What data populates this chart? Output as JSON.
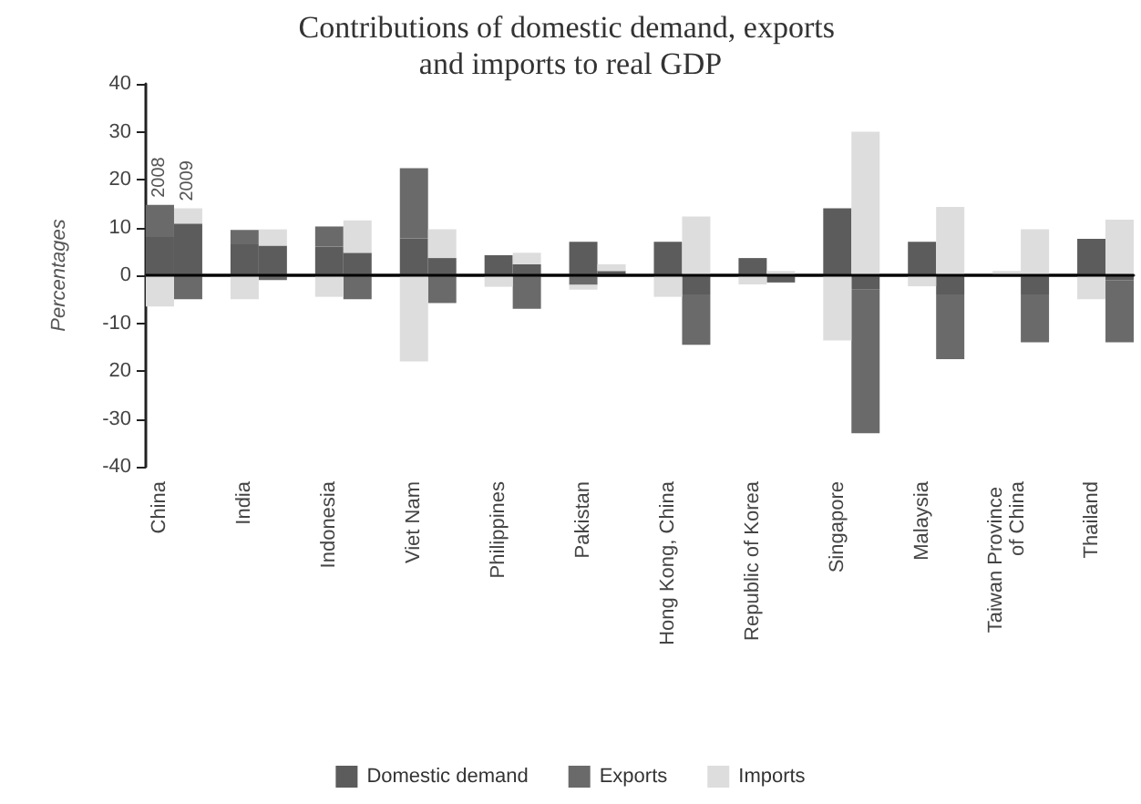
{
  "chart_data": {
    "type": "bar",
    "stacked": true,
    "title": "Contributions of domestic demand, exports and imports to real GDP",
    "ylabel": "Percentages",
    "categories": [
      "China",
      null,
      null,
      "India",
      null,
      null,
      "Indonesia",
      null,
      null,
      "Viet Nam",
      null,
      null,
      "Philippines",
      null,
      null,
      "Pakistan",
      null,
      null,
      "Hong Kong, China",
      null,
      null,
      "Republic of Korea",
      null,
      null,
      "Singapore",
      null,
      null,
      "Malaysia",
      null,
      null,
      "Taiwan Province of China",
      null,
      null,
      "Thailand",
      null
    ],
    "series": [
      {
        "name": "Domestic demand",
        "color": "#5c5c5c",
        "values": [
          8,
          10.8,
          null,
          6.5,
          6.2,
          null,
          6,
          4.7,
          null,
          7.7,
          3.6,
          null,
          4.2,
          2.3,
          null,
          7,
          0.9,
          null,
          7,
          -4,
          null,
          3.6,
          -1.5,
          null,
          14,
          -3,
          null,
          7,
          -4,
          null,
          null,
          -4,
          null,
          7.6,
          -1
        ]
      },
      {
        "name": "Exports",
        "color": "#6a6a6a",
        "values": [
          6.7,
          -5,
          null,
          3,
          -1,
          null,
          4.2,
          -5,
          null,
          14.7,
          -5.8,
          null,
          null,
          -7,
          null,
          -2,
          null,
          null,
          null,
          -10.5,
          null,
          null,
          null,
          null,
          null,
          -30,
          null,
          null,
          -13.5,
          null,
          null,
          -10,
          null,
          null,
          -13
        ]
      },
      {
        "name": "Imports",
        "color": "#dddddd",
        "values": [
          -6.5,
          3.2,
          null,
          -5,
          3.4,
          null,
          -4.5,
          6.8,
          null,
          -18,
          6,
          null,
          -2.4,
          2.4,
          null,
          -1,
          1.4,
          null,
          -4.5,
          12.3,
          null,
          -1.9,
          0.9,
          null,
          -13.6,
          30,
          null,
          -2.3,
          14.3,
          null,
          0.9,
          9.6,
          null,
          -5,
          11.6
        ]
      }
    ],
    "ylim": [
      -40,
      40
    ],
    "yticks": [
      -40,
      -30,
      {
        "value": -20,
        "label": "20"
      },
      -10,
      0,
      10,
      20,
      30,
      40
    ],
    "ref_lines": [
      {
        "axis": "y",
        "value": 0,
        "color": "#000000"
      }
    ],
    "annotations": [
      "2008",
      "2009"
    ],
    "grid": false,
    "legend": "bottom"
  }
}
